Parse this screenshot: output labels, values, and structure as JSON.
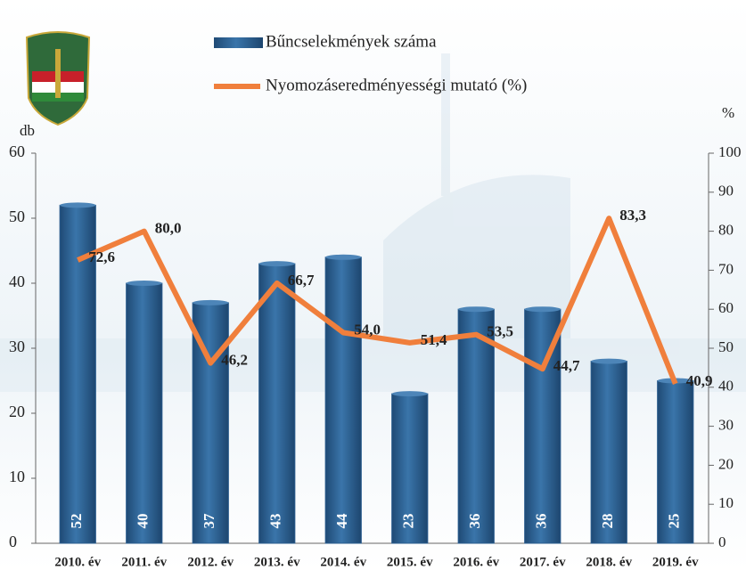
{
  "chart_data": {
    "type": "bar",
    "categories": [
      "2010. év",
      "2011. év",
      "2012. év",
      "2013. év",
      "2014. év",
      "2015. év",
      "2016. év",
      "2017. év",
      "2018. év",
      "2019. év"
    ],
    "series": [
      {
        "name": "Bűncselekmények száma",
        "type": "bar",
        "color": "#2b5d8e",
        "values": [
          52,
          40,
          37,
          43,
          44,
          23,
          36,
          36,
          28,
          25
        ]
      },
      {
        "name": "Nyomozáseredményességi mutató (%)",
        "type": "line",
        "axis": "y2",
        "color": "#f07f3c",
        "values": [
          72.6,
          80.0,
          46.2,
          66.7,
          54.0,
          51.4,
          53.5,
          44.7,
          83.3,
          40.9
        ],
        "value_labels": [
          "72,6",
          "80,0",
          "46,2",
          "66,7",
          "54,0",
          "51,4",
          "53,5",
          "44,7",
          "83,3",
          "40,9"
        ]
      }
    ],
    "y_label": "db",
    "y2_label": "%",
    "ylim": [
      0,
      60
    ],
    "yticks": [
      0,
      10,
      20,
      30,
      40,
      50,
      60
    ],
    "y2lim": [
      0,
      100
    ],
    "y2ticks": [
      0,
      10,
      20,
      30,
      40,
      50,
      60,
      70,
      80,
      90,
      100
    ]
  }
}
